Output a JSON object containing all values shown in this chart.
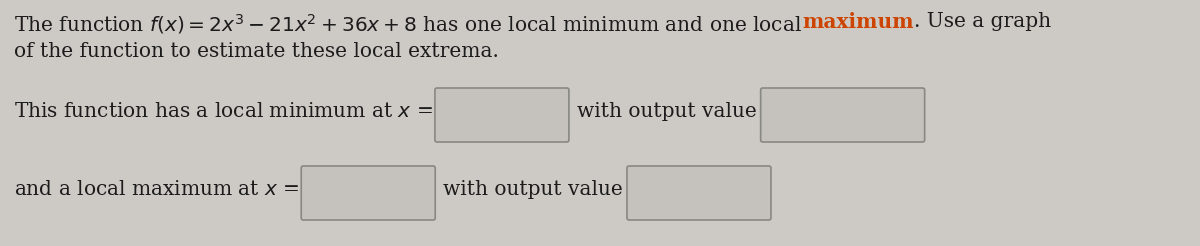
{
  "background_color": "#cdc9c5",
  "font_size": 14.5,
  "font_color": "#1c1c1c",
  "highlight_color": "#cc4400",
  "box_face_color": "#c5c1bc",
  "box_edge_color": "#888882",
  "fig_width": 12.0,
  "fig_height": 2.46,
  "line1_prefix": "The function $f(x) = 2x^3 - 21x^2 + 36x + 8$ has one local minimum and one local ",
  "line1_highlight": "maximum",
  "line1_suffix": ". Use a graph",
  "line2": "of the function to estimate these local extrema.",
  "row1_label": "This function has a local minimum at $x$ =",
  "row1_mid": "    with output value",
  "row2_label": "and a local maximum at $x$ =",
  "row2_mid": "    with output value",
  "dpi": 100
}
